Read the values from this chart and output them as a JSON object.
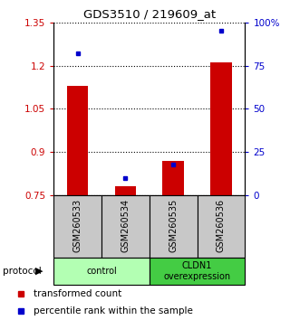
{
  "title": "GDS3510 / 219609_at",
  "samples": [
    "GSM260533",
    "GSM260534",
    "GSM260535",
    "GSM260536"
  ],
  "bar_values": [
    1.13,
    0.78,
    0.87,
    1.21
  ],
  "percentile_values": [
    82,
    10,
    18,
    95
  ],
  "ylim_left": [
    0.75,
    1.35
  ],
  "ylim_right": [
    0,
    100
  ],
  "yticks_left": [
    0.75,
    0.9,
    1.05,
    1.2,
    1.35
  ],
  "yticks_right": [
    0,
    25,
    50,
    75,
    100
  ],
  "ytick_labels_left": [
    "0.75",
    "0.9",
    "1.05",
    "1.2",
    "1.35"
  ],
  "ytick_labels_right": [
    "0",
    "25",
    "50",
    "75",
    "100%"
  ],
  "groups": [
    {
      "label": "control",
      "samples": [
        0,
        1
      ],
      "color": "#b3ffb3"
    },
    {
      "label": "CLDN1\noverexpression",
      "samples": [
        2,
        3
      ],
      "color": "#44cc44"
    }
  ],
  "bar_color": "#cc0000",
  "dot_color": "#0000cc",
  "bar_width": 0.45,
  "sample_bg": "#c8c8c8",
  "legend_bar_label": "transformed count",
  "legend_dot_label": "percentile rank within the sample",
  "protocol_label": "protocol"
}
